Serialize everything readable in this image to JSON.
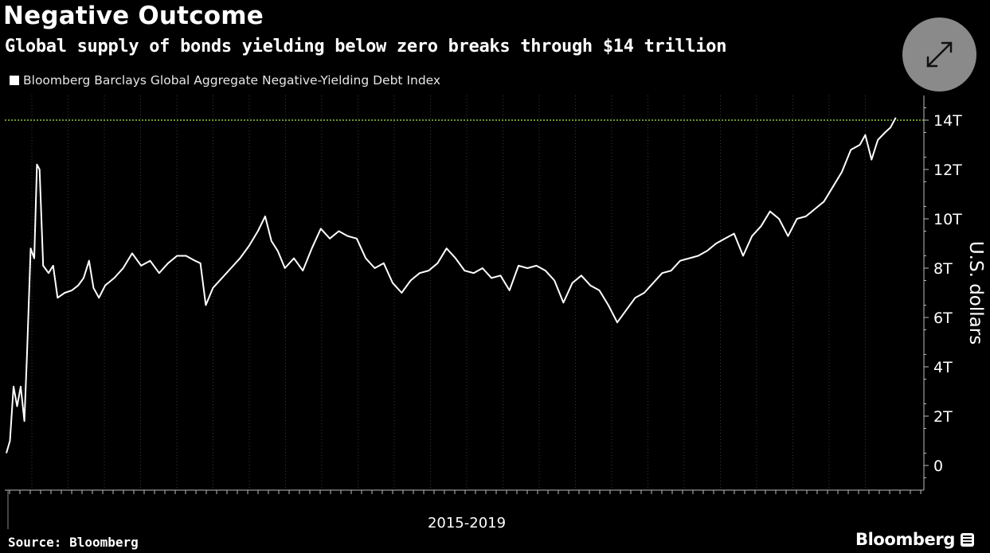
{
  "header": {
    "title": "Negative Outcome",
    "subtitle": "Global supply of bonds yielding below zero breaks through $14 trillion"
  },
  "legend": {
    "label": "Bloomberg Barclays Global Aggregate Negative-Yielding Debt Index"
  },
  "footer": {
    "source": "Source: Bloomberg",
    "brand": "Bloomberg"
  },
  "icons": {
    "expand": "expand-arrows-icon",
    "brand": "bloomberg-terminal-icon"
  },
  "colors": {
    "background": "#000000",
    "line": "#ffffff",
    "reference_line": "#8cc63f",
    "grid": "#3a3a3a"
  },
  "chart_data": {
    "type": "line",
    "title": "Negative Outcome",
    "subtitle": "Global supply of bonds yielding below zero breaks through $14 trillion",
    "xlabel": "2015-2019",
    "ylabel": "U.S. dollars",
    "ylim": [
      -1,
      15
    ],
    "yticks": [
      0,
      2,
      4,
      6,
      8,
      10,
      12,
      14
    ],
    "ytick_labels": [
      "0",
      "2T",
      "4T",
      "6T",
      "8T",
      "10T",
      "12T",
      "14T"
    ],
    "xlim": [
      0,
      100
    ],
    "reference_line": {
      "y": 14,
      "style": "dotted"
    },
    "grid": "vertical dotted",
    "legend_position": "top-left",
    "series": [
      {
        "name": "Bloomberg Barclays Global Aggregate Negative-Yielding Debt Index",
        "points": [
          [
            0,
            0.5
          ],
          [
            0.4,
            1.0
          ],
          [
            0.8,
            3.2
          ],
          [
            1.2,
            2.4
          ],
          [
            1.6,
            3.2
          ],
          [
            2.0,
            1.8
          ],
          [
            2.3,
            4.5
          ],
          [
            2.7,
            8.8
          ],
          [
            3.1,
            8.4
          ],
          [
            3.4,
            12.2
          ],
          [
            3.7,
            12.0
          ],
          [
            4.1,
            8.1
          ],
          [
            4.7,
            7.8
          ],
          [
            5.2,
            8.1
          ],
          [
            5.7,
            6.8
          ],
          [
            6.5,
            7.0
          ],
          [
            7.3,
            7.1
          ],
          [
            8.0,
            7.3
          ],
          [
            8.6,
            7.6
          ],
          [
            9.2,
            8.3
          ],
          [
            9.7,
            7.2
          ],
          [
            10.3,
            6.8
          ],
          [
            11.0,
            7.3
          ],
          [
            12.0,
            7.6
          ],
          [
            13.0,
            8.0
          ],
          [
            14.0,
            8.6
          ],
          [
            15.0,
            8.1
          ],
          [
            16.0,
            8.3
          ],
          [
            17.0,
            7.8
          ],
          [
            18.0,
            8.2
          ],
          [
            19.0,
            8.5
          ],
          [
            20.0,
            8.5
          ],
          [
            21.0,
            8.3
          ],
          [
            21.6,
            8.2
          ],
          [
            22.2,
            6.5
          ],
          [
            23.0,
            7.2
          ],
          [
            24.0,
            7.6
          ],
          [
            25.0,
            8.0
          ],
          [
            26.0,
            8.4
          ],
          [
            27.0,
            8.9
          ],
          [
            28.0,
            9.5
          ],
          [
            28.8,
            10.1
          ],
          [
            29.5,
            9.1
          ],
          [
            30.2,
            8.7
          ],
          [
            31.0,
            8.0
          ],
          [
            32.0,
            8.4
          ],
          [
            33.0,
            7.9
          ],
          [
            34.0,
            8.8
          ],
          [
            35.0,
            9.6
          ],
          [
            36.0,
            9.2
          ],
          [
            37.0,
            9.5
          ],
          [
            38.0,
            9.3
          ],
          [
            39.0,
            9.2
          ],
          [
            40.0,
            8.4
          ],
          [
            41.0,
            8.0
          ],
          [
            42.0,
            8.2
          ],
          [
            43.0,
            7.4
          ],
          [
            44.0,
            7.0
          ],
          [
            45.0,
            7.5
          ],
          [
            46.0,
            7.8
          ],
          [
            47.0,
            7.9
          ],
          [
            48.0,
            8.2
          ],
          [
            49.0,
            8.8
          ],
          [
            50.0,
            8.4
          ],
          [
            51.0,
            7.9
          ],
          [
            52.0,
            7.8
          ],
          [
            53.0,
            8.0
          ],
          [
            54.0,
            7.6
          ],
          [
            55.0,
            7.7
          ],
          [
            56.0,
            7.1
          ],
          [
            57.0,
            8.1
          ],
          [
            58.0,
            8.0
          ],
          [
            59.0,
            8.1
          ],
          [
            60.0,
            7.9
          ],
          [
            61.0,
            7.5
          ],
          [
            62.0,
            6.6
          ],
          [
            63.0,
            7.4
          ],
          [
            64.0,
            7.7
          ],
          [
            65.0,
            7.3
          ],
          [
            66.0,
            7.1
          ],
          [
            67.0,
            6.5
          ],
          [
            68.0,
            5.8
          ],
          [
            69.0,
            6.3
          ],
          [
            70.0,
            6.8
          ],
          [
            71.0,
            7.0
          ],
          [
            72.0,
            7.4
          ],
          [
            73.0,
            7.8
          ],
          [
            74.0,
            7.9
          ],
          [
            75.0,
            8.3
          ],
          [
            76.0,
            8.4
          ],
          [
            77.0,
            8.5
          ],
          [
            78.0,
            8.7
          ],
          [
            79.0,
            9.0
          ],
          [
            80.0,
            9.2
          ],
          [
            81.0,
            9.4
          ],
          [
            82.0,
            8.5
          ],
          [
            83.0,
            9.3
          ],
          [
            84.0,
            9.7
          ],
          [
            85.0,
            10.3
          ],
          [
            86.0,
            10.0
          ],
          [
            87.0,
            9.3
          ],
          [
            88.0,
            10.0
          ],
          [
            89.0,
            10.1
          ],
          [
            90.0,
            10.4
          ],
          [
            91.0,
            10.7
          ],
          [
            92.0,
            11.3
          ],
          [
            93.0,
            11.9
          ],
          [
            94.0,
            12.8
          ],
          [
            95.0,
            13.0
          ],
          [
            95.6,
            13.4
          ],
          [
            96.3,
            12.4
          ],
          [
            97.0,
            13.2
          ],
          [
            97.8,
            13.5
          ],
          [
            98.4,
            13.7
          ],
          [
            99.0,
            14.1
          ]
        ]
      }
    ]
  }
}
